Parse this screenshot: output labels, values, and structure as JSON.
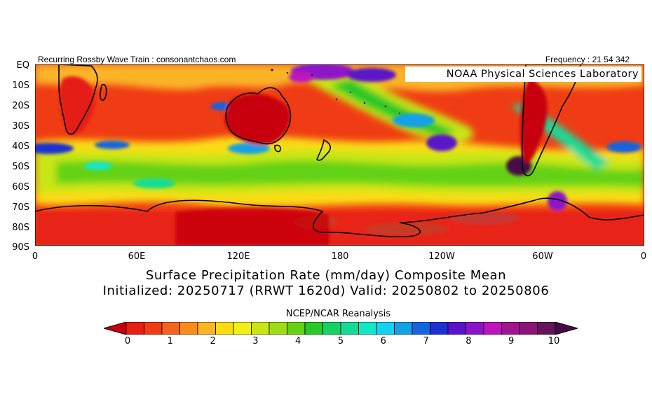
{
  "header": {
    "left_text": "Recurring Rossby Wave Train : consonantchaos.com",
    "right_text": "Frequency : 21 54 342"
  },
  "map": {
    "logo_text": "NOAA Physical Sciences Laboratory",
    "y_axis_labels": [
      "EQ",
      "10S",
      "20S",
      "30S",
      "40S",
      "50S",
      "60S",
      "70S",
      "80S",
      "90S"
    ],
    "x_axis_labels": [
      "0",
      "60E",
      "120E",
      "180",
      "120W",
      "60W",
      "0"
    ],
    "land_outline_color": "#000000"
  },
  "title": {
    "line1": "Surface Precipitation Rate (mm/day) Composite Mean",
    "line2": "Initialized: 20250717 (RRWT 1620d) Valid: 20250802 to 20250806",
    "source": "NCEP/NCAR Reanalysis"
  },
  "colorbar": {
    "labels": [
      "0",
      "1",
      "2",
      "3",
      "4",
      "5",
      "6",
      "7",
      "8",
      "9",
      "10"
    ],
    "colors": [
      "#c8000a",
      "#e61e14",
      "#f03c14",
      "#f5641e",
      "#fa8c1e",
      "#fab428",
      "#fadc14",
      "#f0f014",
      "#c8e614",
      "#a0dc14",
      "#64d214",
      "#28c828",
      "#14d264",
      "#14dc96",
      "#14e6c8",
      "#14d2f0",
      "#14a0e6",
      "#1464dc",
      "#1e32d2",
      "#5a14c8",
      "#8c14c8",
      "#be14be",
      "#a0148c",
      "#8c1478",
      "#64145a",
      "#460a46"
    ]
  }
}
